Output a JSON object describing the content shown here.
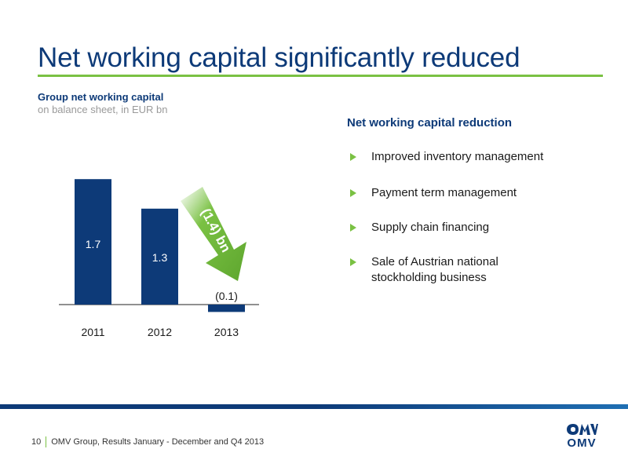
{
  "slide": {
    "title": "Net working capital significantly reduced"
  },
  "chart_section": {
    "title": "Group net working capital",
    "subtitle": "on balance sheet, in EUR bn"
  },
  "chart_data": {
    "type": "bar",
    "categories": [
      "2011",
      "2012",
      "2013"
    ],
    "values": [
      1.7,
      1.3,
      -0.1
    ],
    "data_labels": [
      "1.7",
      "1.3",
      "(0.1)"
    ],
    "title": "Group net working capital",
    "subtitle": "on balance sheet, in EUR bn",
    "xlabel": "",
    "ylabel": "",
    "grid": false,
    "annotations": [
      {
        "text": "(1.4) bn",
        "kind": "arrow"
      }
    ],
    "colors": {
      "bar": "#0d3a78",
      "arrow": "#7ac143",
      "label_inside": "#ffffff",
      "label_outside": "#1a1a1a"
    }
  },
  "panel": {
    "heading": "Net working capital reduction",
    "bullets": [
      "Improved inventory management",
      "Payment term management",
      "Supply chain financing",
      "Sale of  Austrian national stockholding business"
    ]
  },
  "footer": {
    "page_number": "10",
    "text": "OMV Group, Results January - December and Q4 2013"
  },
  "logo": {
    "text": "OMV",
    "icon": "omv-logo-icon"
  },
  "colors": {
    "brand_blue": "#0d3a78",
    "brand_green": "#7ac143"
  }
}
